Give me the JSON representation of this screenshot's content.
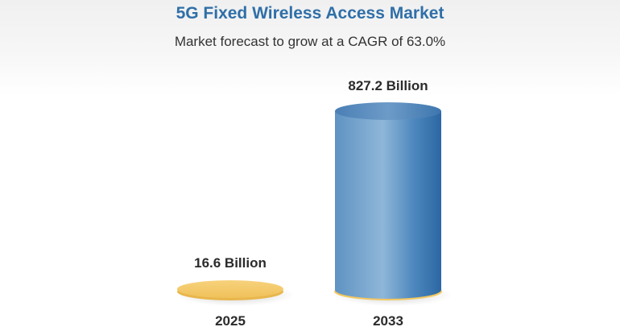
{
  "header": {
    "title": "5G Fixed Wireless Access Market",
    "subtitle": "Market forecast to grow at a CAGR of 63.0%"
  },
  "chart_data": {
    "type": "bar",
    "title": "5G Fixed Wireless Access Market",
    "subtitle": "Market forecast to grow at a CAGR of 63.0%",
    "categories": [
      "2025",
      "2033"
    ],
    "values": [
      16.6,
      827.2
    ],
    "value_labels": [
      "16.6 Billion",
      "827.2 Billion"
    ],
    "unit": "Billion",
    "ylim": [
      0,
      827.2
    ],
    "grid": false,
    "colors": {
      "base_disc": "#f5c96a",
      "cylinder_main": "#5b93c5",
      "cylinder_dark": "#2f6aa5",
      "title": "#2f6fa8"
    }
  }
}
